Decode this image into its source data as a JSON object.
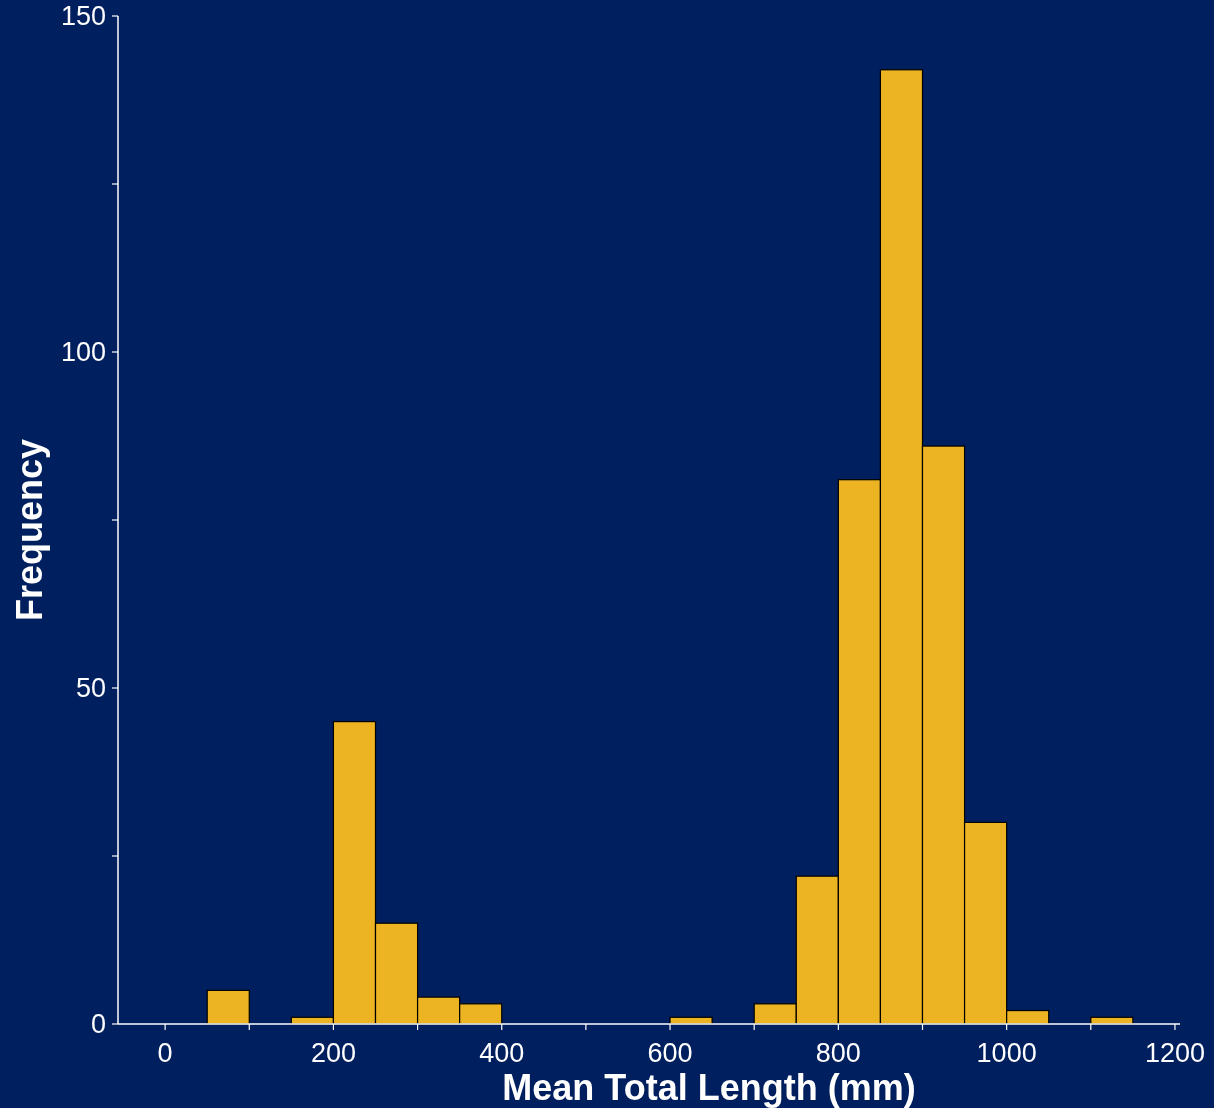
{
  "chart_data": {
    "type": "histogram",
    "xlabel": "Mean Total Length (mm)",
    "ylabel": "Frequency",
    "bins": [
      50,
      100,
      150,
      200,
      250,
      300,
      350,
      400,
      450,
      500,
      550,
      600,
      650,
      700,
      750,
      800,
      850,
      900,
      950,
      1000,
      1050,
      1100,
      1150
    ],
    "values": [
      5,
      0,
      1,
      45,
      15,
      4,
      3,
      0,
      0,
      0,
      0,
      1,
      0,
      3,
      22,
      81,
      142,
      86,
      30,
      2,
      0,
      1
    ],
    "color": "#ecb322",
    "xlim": [
      -56,
      1206
    ],
    "xticks": [
      0,
      {
        "value": 100,
        "label": null
      },
      200,
      {
        "value": 300,
        "label": null
      },
      400,
      {
        "value": 500,
        "label": null
      },
      600,
      {
        "value": 700,
        "label": null
      },
      800,
      {
        "value": 900,
        "label": null
      },
      1000,
      {
        "value": 1100,
        "label": null
      },
      1200
    ],
    "ylim": [
      0,
      150
    ],
    "yticks": [
      0,
      {
        "value": 25,
        "label": null
      },
      50,
      {
        "value": 75,
        "label": null
      },
      100,
      {
        "value": 125,
        "label": null
      },
      150
    ],
    "grid": false
  }
}
